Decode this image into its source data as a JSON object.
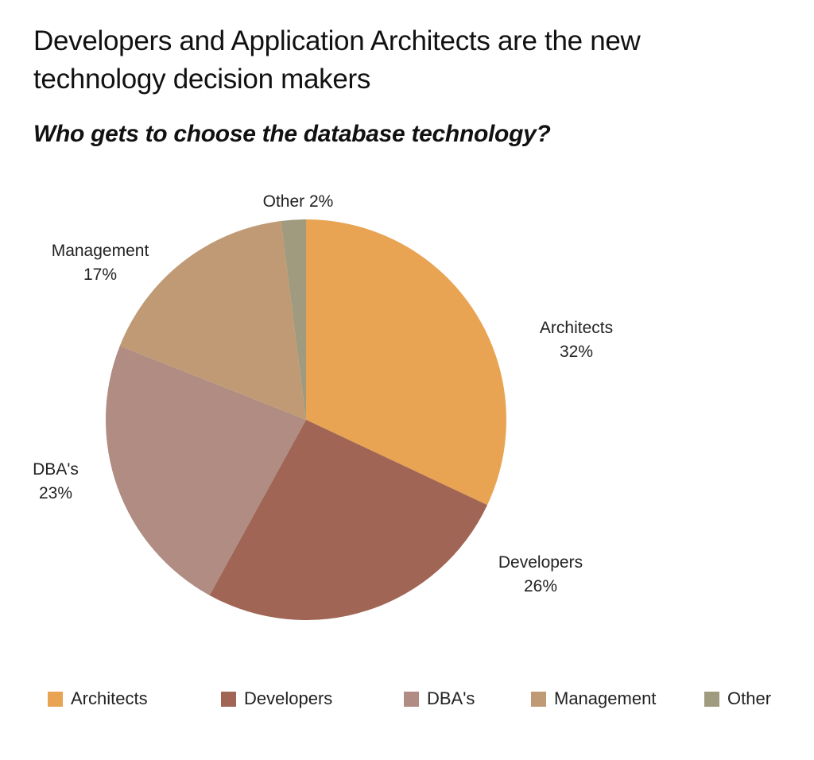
{
  "chart_data": {
    "type": "pie",
    "title": "Developers and Application Architects are the new technology decision makers",
    "subtitle": "Who gets to choose the database technology?",
    "slices": [
      {
        "label": "Architects",
        "value": 32,
        "value_label": "32%",
        "color": "#E8A453"
      },
      {
        "label": "Developers",
        "value": 26,
        "value_label": "26%",
        "color": "#A06555"
      },
      {
        "label": "DBA's",
        "value": 23,
        "value_label": "23%",
        "color": "#B08C82"
      },
      {
        "label": "Management",
        "value": 17,
        "value_label": "17%",
        "color": "#C09A74"
      },
      {
        "label": "Other",
        "value": 2,
        "value_label": "2%",
        "color": "#A09A7E"
      }
    ],
    "start_angle": "12 o'clock",
    "direction": "clockwise",
    "legend_placement": "bottom",
    "legend": [
      "Architects",
      "Developers",
      "DBA's",
      "Management",
      "Other"
    ]
  }
}
